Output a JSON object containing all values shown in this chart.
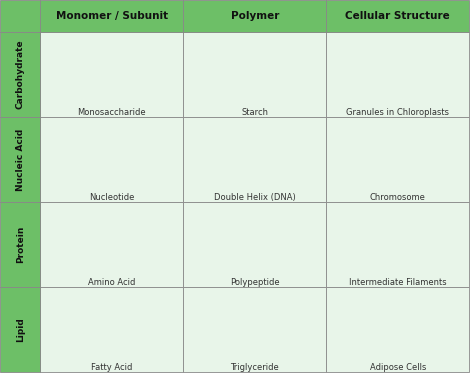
{
  "col_headers": [
    "Monomer / Subunit",
    "Polymer",
    "Cellular Structure"
  ],
  "row_headers": [
    "Carbohydrate",
    "Nucleic Acid",
    "Protein",
    "Lipid"
  ],
  "cell_labels": [
    [
      "Monosaccharide",
      "Starch",
      "Granules in Chloroplasts"
    ],
    [
      "Nucleotide",
      "Double Helix (DNA)",
      "Chromosome"
    ],
    [
      "Amino Acid",
      "Polypeptide",
      "Intermediate Filaments"
    ],
    [
      "Fatty Acid",
      "Triglyceride",
      "Adipose Cells"
    ]
  ],
  "header_bg": "#6dbf67",
  "cell_bg": "#e8f5e9",
  "header_text": "#111111",
  "label_text": "#333333",
  "col_header_fs": 7.5,
  "row_header_fs": 6.5,
  "label_fs": 6.0,
  "figsize": [
    4.74,
    3.76
  ],
  "dpi": 100,
  "colors": {
    "carb_mono": "#3db8aa",
    "carb_poly": "#6ecfc6",
    "chloro_green": "#44aa44",
    "chloro_med": "#88cc44",
    "chloro_light": "#aaddaa",
    "chloro_inner": "#c8e8c8",
    "na_phosphate": "#f5c800",
    "na_sugar": "#3db8aa",
    "na_base": "#cc7799",
    "helix_orange": "#e07530",
    "helix_gold": "#e8a840",
    "helix_link": "#c8a030",
    "chrom_blue": "#4060a0",
    "chrom_dark": "#2244aa",
    "protein_bg": "#f0c898",
    "protein_n": "#cc55bb",
    "protein_o": "#dd3333",
    "poly_teal": "#88cccc",
    "poly_pink": "#f0a0a0",
    "fil_blue": "#5599cc",
    "fil_dark": "#3377aa",
    "fil_light": "#88bbdd",
    "lipid_dark": "#333333",
    "lipid_red": "#cc2222",
    "lipid_white": "#eeeeee",
    "tri_bg": "#5599cc",
    "tri_dark": "#111111",
    "tri_red": "#dd3333",
    "adi_pink": "#f0b8b8",
    "adi_yellow": "#f5d878",
    "adi_border": "#e8a070"
  }
}
